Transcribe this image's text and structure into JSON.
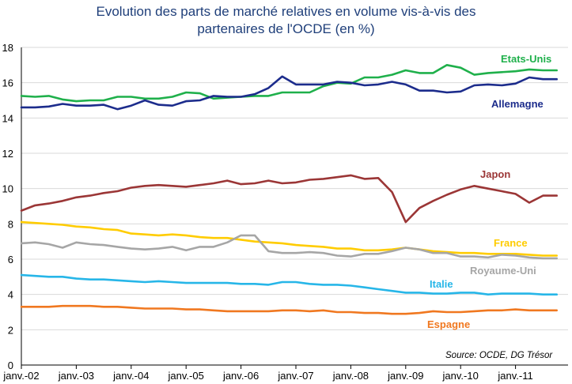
{
  "chart_data": {
    "type": "line",
    "title_line1": "Evolution des parts de marché relatives en volume vis-à-vis des",
    "title_line2": "partenaires de l'OCDE (en %)",
    "source": "Source: OCDE, DG Trésor",
    "xlabel": "",
    "ylabel": "",
    "ylim": [
      0,
      18
    ],
    "yticks": [
      "0",
      "2",
      "4",
      "6",
      "8",
      "10",
      "12",
      "14",
      "16",
      "18"
    ],
    "xtick_labels": [
      "janv.-02",
      "janv.-03",
      "janv.-04",
      "janv.-05",
      "janv.-06",
      "janv.-07",
      "janv.-08",
      "janv.-09",
      "janv.-10",
      "janv.-11"
    ],
    "grid": "horizontal",
    "x_start": "2002-Q1",
    "x_frequency": "quarterly",
    "series": [
      {
        "name": "Etats-Unis",
        "color": "#1fb04b",
        "values": [
          15.25,
          15.2,
          15.25,
          15.05,
          14.95,
          15.0,
          15.0,
          15.2,
          15.2,
          15.1,
          15.1,
          15.2,
          15.45,
          15.4,
          15.1,
          15.15,
          15.2,
          15.25,
          15.25,
          15.45,
          15.45,
          15.45,
          15.8,
          16.0,
          15.95,
          16.3,
          16.3,
          16.45,
          16.7,
          16.55,
          16.55,
          17.0,
          16.85,
          16.45,
          16.55,
          16.6,
          16.65,
          16.75,
          16.7,
          16.7
        ]
      },
      {
        "name": "Allemagne",
        "color": "#1c2c8c",
        "values": [
          14.6,
          14.6,
          14.65,
          14.8,
          14.7,
          14.7,
          14.75,
          14.5,
          14.7,
          15.0,
          14.75,
          14.7,
          14.95,
          15.0,
          15.25,
          15.2,
          15.2,
          15.35,
          15.7,
          16.35,
          15.9,
          15.9,
          15.9,
          16.05,
          16.0,
          15.85,
          15.9,
          16.05,
          15.9,
          15.55,
          15.55,
          15.45,
          15.5,
          15.85,
          15.9,
          15.85,
          15.95,
          16.3,
          16.2,
          16.2
        ]
      },
      {
        "name": "Japon",
        "color": "#9b3636",
        "values": [
          8.75,
          9.05,
          9.15,
          9.3,
          9.5,
          9.6,
          9.75,
          9.85,
          10.05,
          10.15,
          10.2,
          10.15,
          10.1,
          10.2,
          10.3,
          10.45,
          10.25,
          10.3,
          10.45,
          10.3,
          10.35,
          10.5,
          10.55,
          10.65,
          10.75,
          10.55,
          10.6,
          9.8,
          8.1,
          8.9,
          9.3,
          9.65,
          9.95,
          10.15,
          10.0,
          9.85,
          9.7,
          9.2,
          9.6,
          9.6
        ]
      },
      {
        "name": "France",
        "color": "#ffcc00",
        "values": [
          8.1,
          8.05,
          8.0,
          7.95,
          7.85,
          7.8,
          7.7,
          7.65,
          7.45,
          7.4,
          7.35,
          7.4,
          7.35,
          7.25,
          7.2,
          7.2,
          7.1,
          7.0,
          6.95,
          6.9,
          6.8,
          6.75,
          6.7,
          6.6,
          6.6,
          6.5,
          6.5,
          6.55,
          6.65,
          6.55,
          6.45,
          6.4,
          6.35,
          6.35,
          6.3,
          6.3,
          6.3,
          6.25,
          6.2,
          6.2
        ]
      },
      {
        "name": "Royaume-Uni",
        "color": "#a6a6a6",
        "values": [
          6.9,
          6.95,
          6.85,
          6.65,
          6.95,
          6.85,
          6.8,
          6.7,
          6.6,
          6.55,
          6.6,
          6.7,
          6.5,
          6.7,
          6.7,
          6.95,
          7.35,
          7.35,
          6.45,
          6.35,
          6.35,
          6.4,
          6.35,
          6.2,
          6.15,
          6.3,
          6.3,
          6.45,
          6.65,
          6.55,
          6.35,
          6.35,
          6.15,
          6.15,
          6.1,
          6.25,
          6.2,
          6.1,
          6.05,
          6.05
        ]
      },
      {
        "name": "Italie",
        "color": "#27b6e8",
        "values": [
          5.1,
          5.05,
          5.0,
          5.0,
          4.9,
          4.85,
          4.85,
          4.8,
          4.75,
          4.7,
          4.75,
          4.7,
          4.65,
          4.65,
          4.65,
          4.65,
          4.6,
          4.6,
          4.55,
          4.7,
          4.7,
          4.6,
          4.55,
          4.55,
          4.5,
          4.4,
          4.3,
          4.2,
          4.1,
          4.1,
          4.05,
          4.05,
          4.1,
          4.1,
          4.0,
          4.05,
          4.05,
          4.05,
          4.0,
          4.0
        ]
      },
      {
        "name": "Espagne",
        "color": "#f07820",
        "values": [
          3.3,
          3.3,
          3.3,
          3.35,
          3.35,
          3.35,
          3.3,
          3.3,
          3.25,
          3.2,
          3.2,
          3.2,
          3.15,
          3.15,
          3.1,
          3.05,
          3.05,
          3.05,
          3.05,
          3.1,
          3.1,
          3.05,
          3.1,
          3.0,
          3.0,
          2.95,
          2.95,
          2.9,
          2.9,
          2.95,
          3.05,
          3.0,
          3.0,
          3.05,
          3.1,
          3.1,
          3.15,
          3.1,
          3.1,
          3.1
        ]
      }
    ]
  }
}
